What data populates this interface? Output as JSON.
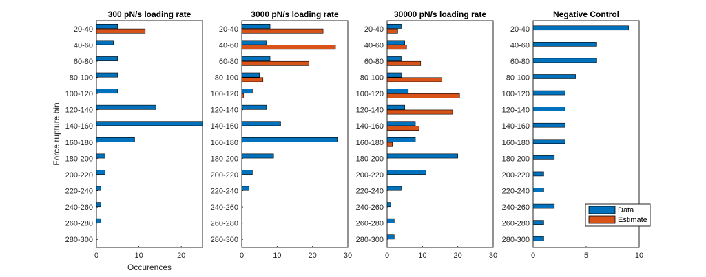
{
  "figure": {
    "ylabel": "Force rupture bin",
    "categories": [
      "20-40",
      "40-60",
      "60-80",
      "80-100",
      "100-120",
      "120-140",
      "140-160",
      "160-180",
      "180-200",
      "200-220",
      "220-240",
      "240-260",
      "260-280",
      "280-300"
    ],
    "colors": {
      "data": "#0072BD",
      "estimate": "#D95319"
    },
    "legend": {
      "labels": [
        "Data",
        "Estimate"
      ],
      "placement": "inside right of Negative Control panel"
    }
  },
  "chart_data": [
    {
      "type": "bar",
      "orientation": "horizontal",
      "title": "300 pN/s loading rate",
      "xlabel": "Occurences",
      "ylabel": "Force rupture bin",
      "xlim": [
        0,
        25
      ],
      "xticks": [
        0,
        10,
        20
      ],
      "categories": [
        "20-40",
        "40-60",
        "60-80",
        "80-100",
        "100-120",
        "120-140",
        "140-160",
        "160-180",
        "180-200",
        "200-220",
        "220-240",
        "240-260",
        "260-280",
        "280-300"
      ],
      "series": [
        {
          "name": "Data",
          "values": [
            5,
            4,
            5,
            5,
            5,
            14,
            26,
            9,
            2,
            2,
            1,
            1,
            1,
            0
          ]
        },
        {
          "name": "Estimate",
          "values": [
            11.5,
            0,
            0,
            0,
            0,
            0,
            0,
            0,
            0,
            0,
            0,
            0,
            0,
            0
          ]
        }
      ]
    },
    {
      "type": "bar",
      "orientation": "horizontal",
      "title": "3000 pN/s loading rate",
      "xlabel": "",
      "xlim": [
        0,
        30
      ],
      "xticks": [
        0,
        10,
        20,
        30
      ],
      "categories": [
        "20-40",
        "40-60",
        "60-80",
        "80-100",
        "100-120",
        "120-140",
        "140-160",
        "160-180",
        "180-200",
        "200-220",
        "220-240",
        "240-260",
        "260-280",
        "280-300"
      ],
      "series": [
        {
          "name": "Data",
          "values": [
            8,
            7,
            8,
            5,
            3,
            7,
            11,
            27,
            9,
            3,
            2,
            0,
            0,
            0
          ]
        },
        {
          "name": "Estimate",
          "values": [
            23,
            26.5,
            19,
            6,
            0.5,
            0,
            0,
            0,
            0,
            0,
            0,
            0,
            0,
            0
          ]
        }
      ]
    },
    {
      "type": "bar",
      "orientation": "horizontal",
      "title": "30000 pN/s loading rate",
      "xlabel": "",
      "xlim": [
        0,
        30
      ],
      "xticks": [
        0,
        10,
        20,
        30
      ],
      "categories": [
        "20-40",
        "40-60",
        "60-80",
        "80-100",
        "100-120",
        "120-140",
        "140-160",
        "160-180",
        "180-200",
        "200-220",
        "220-240",
        "240-260",
        "260-280",
        "280-300"
      ],
      "series": [
        {
          "name": "Data",
          "values": [
            4,
            5,
            4,
            4,
            6,
            5,
            8,
            8,
            20,
            11,
            4,
            1,
            2,
            2
          ]
        },
        {
          "name": "Estimate",
          "values": [
            3,
            5.5,
            9.5,
            15.5,
            20.5,
            18.5,
            9,
            1.5,
            0,
            0,
            0,
            0,
            0,
            0
          ]
        }
      ]
    },
    {
      "type": "bar",
      "orientation": "horizontal",
      "title": "Negative Control",
      "xlabel": "",
      "xlim": [
        0,
        10
      ],
      "xticks": [
        0,
        5,
        10
      ],
      "categories": [
        "20-40",
        "40-60",
        "60-80",
        "80-100",
        "100-120",
        "120-140",
        "140-160",
        "160-180",
        "180-200",
        "200-220",
        "220-240",
        "240-260",
        "260-280",
        "280-300"
      ],
      "series": [
        {
          "name": "Data",
          "values": [
            9,
            6,
            6,
            4,
            3,
            3,
            3,
            3,
            2,
            1,
            1,
            2,
            1,
            1
          ]
        }
      ]
    }
  ]
}
